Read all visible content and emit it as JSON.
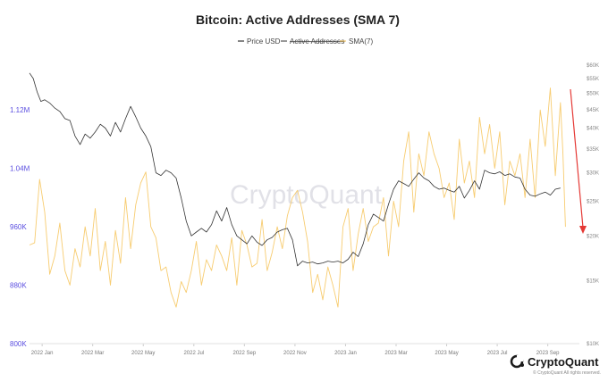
{
  "chart_data": {
    "type": "line",
    "title": "Bitcoin: Active Addresses (SMA 7)",
    "legend": [
      "Price USD",
      "Active Addresses",
      "SMA(7)"
    ],
    "left_axis": {
      "ticks": [
        "800K",
        "880K",
        "960K",
        "1.04M",
        "1.12M"
      ],
      "tick_values": [
        800000,
        880000,
        960000,
        1040000,
        1120000
      ],
      "ylim": [
        800000,
        1185000
      ]
    },
    "right_axis": {
      "scale": "log",
      "ticks": [
        "$10K",
        "$15K",
        "$20K",
        "$25K",
        "$30K",
        "$35K",
        "$40K",
        "$45K",
        "$50K",
        "$55K",
        "$60K"
      ],
      "tick_values": [
        10000,
        15000,
        20000,
        25000,
        30000,
        35000,
        40000,
        45000,
        50000,
        55000,
        60000
      ],
      "ylim": [
        10000,
        61000
      ]
    },
    "x_axis": {
      "ticks": [
        "2022 Jan",
        "2022 Mar",
        "2022 May",
        "2022 Jul",
        "2022 Sep",
        "2022 Nov",
        "2023 Jan",
        "2023 Mar",
        "2023 May",
        "2023 Jul",
        "2023 Sep"
      ],
      "tick_values": [
        0.5,
        2.5,
        4.5,
        6.5,
        8.5,
        10.5,
        12.5,
        14.5,
        16.5,
        18.5,
        20.5
      ],
      "xlim": [
        0,
        21.75
      ]
    },
    "series": [
      {
        "name": "Price USD",
        "color": "#333333",
        "axis": "right",
        "x": [
          0,
          0.15,
          0.3,
          0.45,
          0.6,
          0.8,
          1.0,
          1.2,
          1.4,
          1.6,
          1.8,
          2.0,
          2.2,
          2.4,
          2.6,
          2.8,
          3.0,
          3.2,
          3.4,
          3.6,
          3.8,
          4.0,
          4.2,
          4.4,
          4.6,
          4.8,
          5.0,
          5.2,
          5.4,
          5.6,
          5.8,
          6.0,
          6.2,
          6.4,
          6.6,
          6.8,
          7.0,
          7.2,
          7.4,
          7.6,
          7.8,
          8.0,
          8.2,
          8.4,
          8.6,
          8.8,
          9.0,
          9.2,
          9.4,
          9.6,
          9.8,
          10.0,
          10.2,
          10.4,
          10.6,
          10.8,
          11.0,
          11.2,
          11.4,
          11.6,
          11.8,
          12.0,
          12.2,
          12.4,
          12.6,
          12.8,
          13.0,
          13.2,
          13.4,
          13.6,
          13.8,
          14.0,
          14.2,
          14.4,
          14.6,
          14.8,
          15.0,
          15.2,
          15.4,
          15.6,
          15.8,
          16.0,
          16.2,
          16.4,
          16.6,
          16.8,
          17.0,
          17.2,
          17.4,
          17.6,
          17.8,
          18.0,
          18.2,
          18.4,
          18.6,
          18.8,
          19.0,
          19.2,
          19.4,
          19.6,
          19.8,
          20.0,
          20.2,
          20.4,
          20.6,
          20.8,
          21.0
        ],
        "values": [
          57000,
          55000,
          50500,
          47500,
          48000,
          47000,
          45500,
          44500,
          42500,
          42000,
          38000,
          36000,
          38500,
          37500,
          39000,
          41000,
          40000,
          38000,
          41500,
          39000,
          42500,
          46000,
          43000,
          40000,
          38000,
          35500,
          30000,
          29500,
          30500,
          30000,
          29000,
          25500,
          22000,
          20000,
          20500,
          21000,
          20500,
          21500,
          23500,
          22000,
          24000,
          21500,
          20000,
          19500,
          19000,
          20000,
          19200,
          18800,
          19500,
          19800,
          20500,
          20800,
          21000,
          19500,
          16500,
          17000,
          16800,
          16900,
          16700,
          16800,
          17000,
          16900,
          17000,
          16800,
          17200,
          18000,
          17500,
          19000,
          21500,
          23000,
          22500,
          22000,
          24500,
          27000,
          28500,
          28000,
          27500,
          28800,
          30000,
          29000,
          28500,
          27500,
          27000,
          27200,
          26800,
          26500,
          27500,
          25500,
          26800,
          28500,
          27000,
          30500,
          30000,
          29800,
          30200,
          29500,
          29800,
          29200,
          29000,
          27000,
          26000,
          25800,
          26200,
          26500,
          26000,
          27000,
          27200
        ]
      },
      {
        "name": "SMA(7)",
        "color": "#f7cc70",
        "axis": "left",
        "x": [
          0,
          0.2,
          0.4,
          0.6,
          0.8,
          1.0,
          1.2,
          1.4,
          1.6,
          1.8,
          2.0,
          2.2,
          2.4,
          2.6,
          2.8,
          3.0,
          3.2,
          3.4,
          3.6,
          3.8,
          4.0,
          4.2,
          4.4,
          4.6,
          4.8,
          5.0,
          5.2,
          5.4,
          5.6,
          5.8,
          6.0,
          6.2,
          6.4,
          6.6,
          6.8,
          7.0,
          7.2,
          7.4,
          7.6,
          7.8,
          8.0,
          8.2,
          8.4,
          8.6,
          8.8,
          9.0,
          9.2,
          9.4,
          9.6,
          9.8,
          10.0,
          10.2,
          10.4,
          10.6,
          10.8,
          11.0,
          11.2,
          11.4,
          11.6,
          11.8,
          12.0,
          12.2,
          12.4,
          12.6,
          12.8,
          13.0,
          13.2,
          13.4,
          13.6,
          13.8,
          14.0,
          14.2,
          14.4,
          14.6,
          14.8,
          15.0,
          15.2,
          15.4,
          15.6,
          15.8,
          16.0,
          16.2,
          16.4,
          16.6,
          16.8,
          17.0,
          17.2,
          17.4,
          17.6,
          17.8,
          18.0,
          18.2,
          18.4,
          18.6,
          18.8,
          19.0,
          19.2,
          19.4,
          19.6,
          19.8,
          20.0,
          20.2,
          20.4,
          20.6,
          20.8,
          21.0,
          21.1,
          21.2
        ],
        "values": [
          935000,
          938000,
          1025000,
          980000,
          895000,
          920000,
          965000,
          900000,
          880000,
          930000,
          905000,
          960000,
          920000,
          985000,
          900000,
          940000,
          880000,
          955000,
          910000,
          1000000,
          930000,
          990000,
          1020000,
          1035000,
          960000,
          945000,
          900000,
          905000,
          870000,
          850000,
          885000,
          870000,
          900000,
          940000,
          880000,
          915000,
          900000,
          935000,
          920000,
          900000,
          945000,
          880000,
          955000,
          935000,
          905000,
          910000,
          970000,
          900000,
          925000,
          960000,
          930000,
          975000,
          1000000,
          1010000,
          980000,
          940000,
          870000,
          895000,
          860000,
          905000,
          880000,
          850000,
          960000,
          985000,
          900000,
          950000,
          985000,
          940000,
          960000,
          965000,
          1000000,
          920000,
          995000,
          960000,
          1050000,
          1090000,
          980000,
          1060000,
          1030000,
          1090000,
          1060000,
          1040000,
          1000000,
          1020000,
          970000,
          1080000,
          1020000,
          1050000,
          1000000,
          1110000,
          1060000,
          1100000,
          1040000,
          1090000,
          990000,
          1050000,
          1030000,
          1060000,
          1000000,
          1080000,
          1000000,
          1120000,
          1070000,
          1150000,
          1030000,
          1130000,
          1060000,
          960000
        ]
      }
    ],
    "annotation": "downward red arrow at end of series"
  },
  "watermark": "CryptoQuant",
  "brand": {
    "name": "CryptoQuant",
    "footnote": "© CryptoQuant All rights reserved."
  }
}
